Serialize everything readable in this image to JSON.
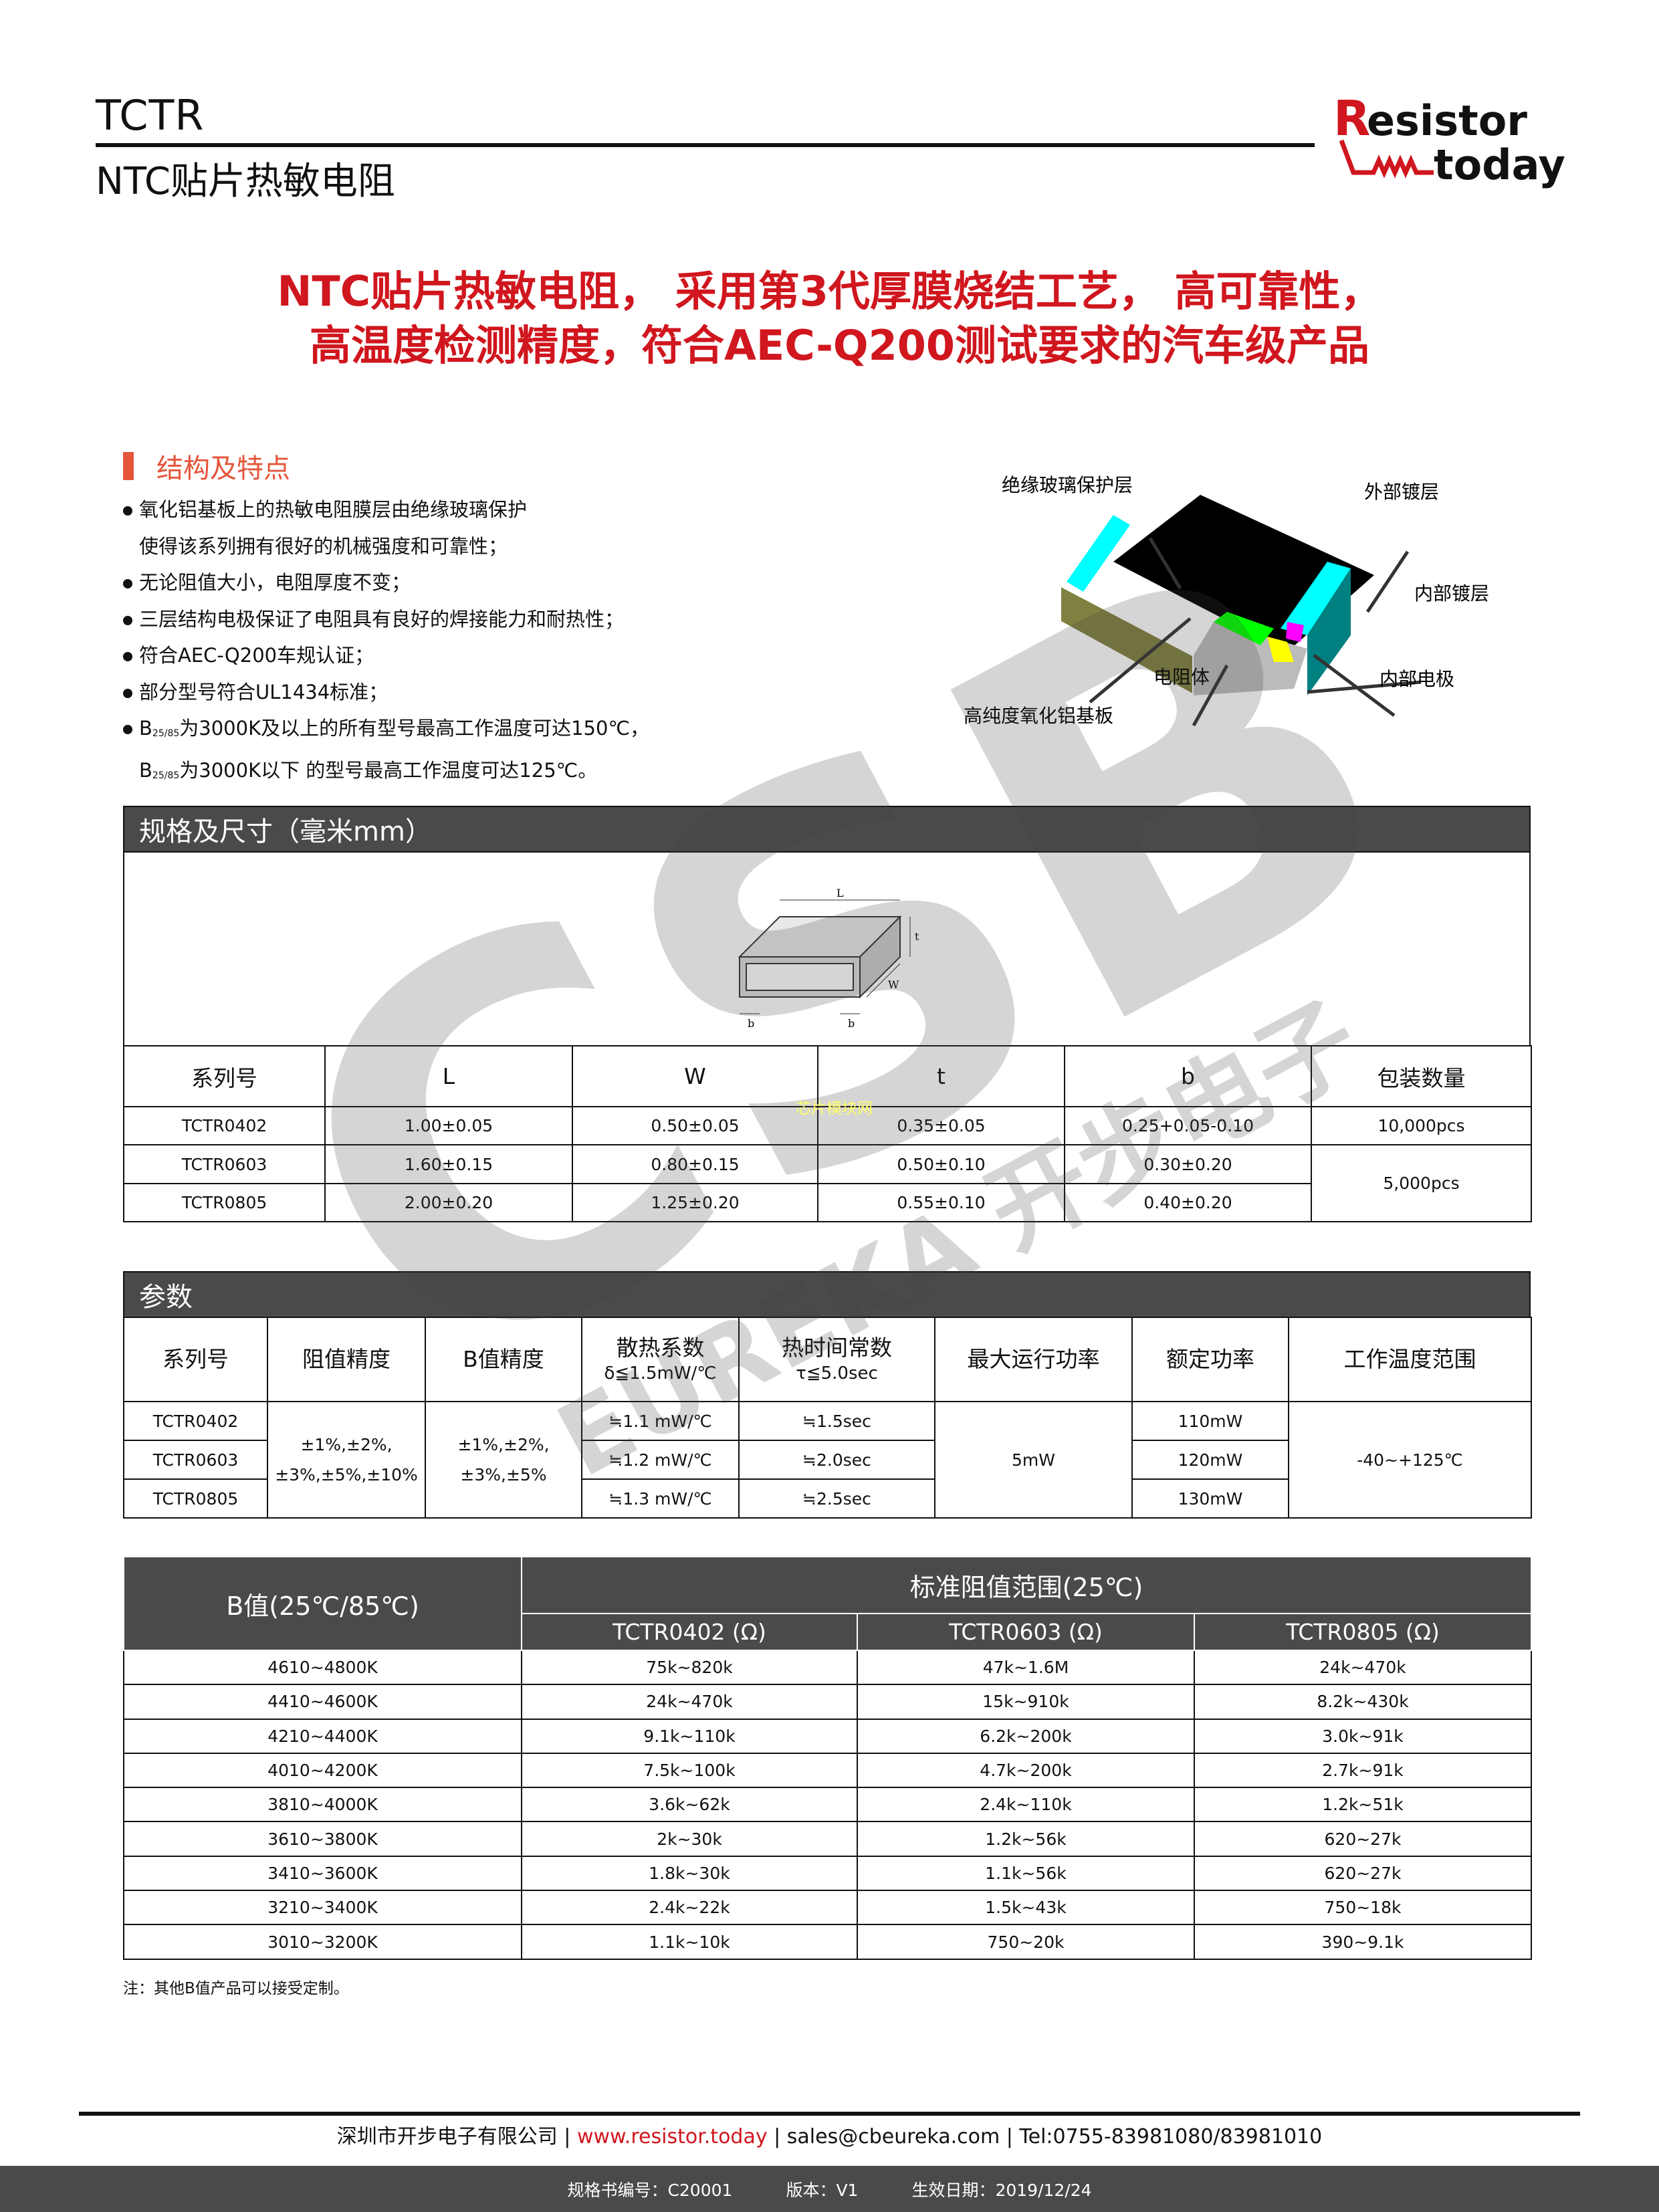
{
  "header": {
    "title": "TCTR",
    "subtitle": "NTC贴片热敏电阻",
    "logo_text": "Resistor today",
    "logo_r_color": "#d0161e"
  },
  "headline": [
    "NTC贴片热敏电阻， 采用第3代厚膜烧结工艺， 高可靠性，",
    "高温度检测精度，符合AEC-Q200测试要求的汽车级产品"
  ],
  "features": {
    "title": "结构及特点",
    "items": [
      "氧化铝基板上的热敏电阻膜层由绝缘玻璃保护",
      "使得该系列拥有很好的机械强度和可靠性；",
      "无论阻值大小，电阻厚度不变；",
      "三层结构电极保证了电阻具有良好的焊接能力和耐热性；",
      "符合AEC-Q200车规认证；",
      "部分型号符合UL1434标准；"
    ],
    "b_line1": {
      "b": "B",
      "sub": "25/85",
      "text": "为3000K及以上的所有型号最高工作温度可达150℃，"
    },
    "b_line2": {
      "b": "B",
      "sub": "25/85",
      "text": "为3000K以下 的型号最高工作温度可达125℃。"
    }
  },
  "diagram": {
    "labels": [
      "绝缘玻璃保护层",
      "外部镀层",
      "内部镀层",
      "内部电极",
      "电阻体",
      "高纯度氧化铝基板"
    ]
  },
  "dimensions": {
    "title": "规格及尺寸（毫米mm）",
    "drawing_labels": {
      "L": "L",
      "t": "t",
      "W": "W",
      "b": "b"
    },
    "headers": [
      "系列号",
      "L",
      "W",
      "t",
      "b",
      "包装数量"
    ],
    "rows": [
      [
        "TCTR0402",
        "1.00±0.05",
        "0.50±0.05",
        "0.35±0.05",
        "0.25+0.05-0.10",
        "10,000pcs"
      ],
      [
        "TCTR0603",
        "1.60±0.15",
        "0.80±0.15",
        "0.50±0.10",
        "0.30±0.20",
        "5,000pcs"
      ],
      [
        "TCTR0805",
        "2.00±0.20",
        "1.25±0.20",
        "0.55±0.10",
        "0.40±0.20"
      ]
    ]
  },
  "params": {
    "title": "参数",
    "headers": [
      "系列号",
      "阻值精度",
      "B值精度",
      "散热系数",
      "热时间常数",
      "最大运行功率",
      "额定功率",
      "工作温度范围"
    ],
    "subheaders": {
      "dissipation": "δ≦1.5mW/℃",
      "time_const": "τ≦5.0sec"
    },
    "models": [
      "TCTR0402",
      "TCTR0603",
      "TCTR0805"
    ],
    "res_tol": [
      "±1%,±2%,",
      "±3%,±5%,±10%"
    ],
    "b_tol": [
      "±1%,±2%,",
      "±3%,±5%"
    ],
    "dissipation": [
      "≒1.1 mW/℃",
      "≒1.2 mW/℃",
      "≒1.3 mW/℃"
    ],
    "time_const": [
      "≒1.5sec",
      "≒2.0sec",
      "≒2.5sec"
    ],
    "max_power": "5mW",
    "rated_power": [
      "110mW",
      "120mW",
      "130mW"
    ],
    "temp_range": "-40~+125℃"
  },
  "bvalues": {
    "col1": "B值(25℃/85℃)",
    "group": "标准阻值范围(25℃)",
    "cols": [
      "TCTR0402 (Ω)",
      "TCTR0603 (Ω)",
      "TCTR0805 (Ω)"
    ],
    "rows": [
      [
        "4610~4800K",
        "75k~820k",
        "47k~1.6M",
        "24k~470k"
      ],
      [
        "4410~4600K",
        "24k~470k",
        "15k~910k",
        "8.2k~430k"
      ],
      [
        "4210~4400K",
        "9.1k~110k",
        "6.2k~200k",
        "3.0k~91k"
      ],
      [
        "4010~4200K",
        "7.5k~100k",
        "4.7k~200k",
        "2.7k~91k"
      ],
      [
        "3810~4000K",
        "3.6k~62k",
        "2.4k~110k",
        "1.2k~51k"
      ],
      [
        "3610~3800K",
        "2k~30k",
        "1.2k~56k",
        "620~27k"
      ],
      [
        "3410~3600K",
        "1.8k~30k",
        "1.1k~56k",
        "620~27k"
      ],
      [
        "3210~3400K",
        "2.4k~22k",
        "1.5k~43k",
        "750~18k"
      ],
      [
        "3010~3200K",
        "1.1k~10k",
        "750~20k",
        "390~9.1k"
      ]
    ]
  },
  "note": "注：其他B值产品可以接受定制。",
  "footer": {
    "company": "深圳市开步电子有限公司",
    "url": "www.resistor.today",
    "email": "sales@cbeureka.com",
    "tel": "Tel:0755-83981080/83981010",
    "sep": " | "
  },
  "bottom": {
    "spec_no": "规格书编号：C20001",
    "version": "版本：V1",
    "date": "生效日期：2019/12/24"
  },
  "watermark": {
    "big": "CSB",
    "text": "EUREKA 开步电子",
    "small": "芯片模块网"
  }
}
